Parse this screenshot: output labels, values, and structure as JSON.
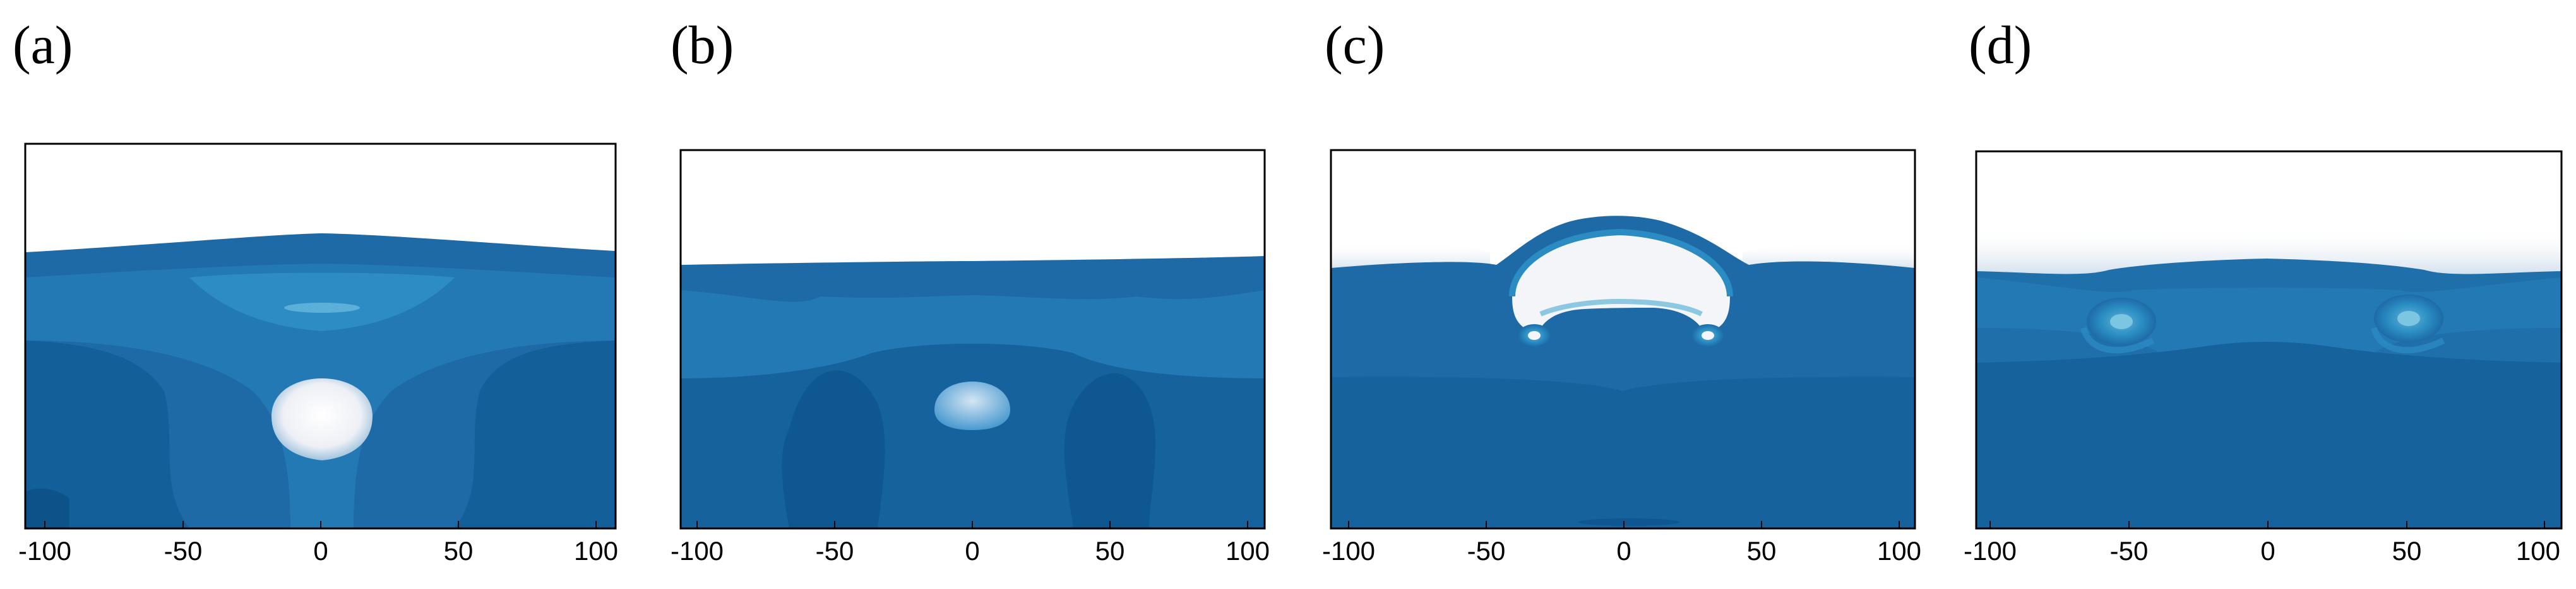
{
  "figure": {
    "panels": [
      {
        "label": "(a)",
        "x_ticks": [
          "-100",
          "-50",
          "0",
          "50",
          "100"
        ]
      },
      {
        "label": "(b)",
        "x_ticks": [
          "-100",
          "-50",
          "0",
          "50",
          "100"
        ]
      },
      {
        "label": "(c)",
        "x_ticks": [
          "-100",
          "-50",
          "0",
          "50",
          "100"
        ]
      },
      {
        "label": "(d)",
        "x_ticks": [
          "-100",
          "-50",
          "0",
          "50",
          "100"
        ]
      }
    ],
    "colors": {
      "air": "#ffffff",
      "water_surface": "#1d6aa6",
      "water_light": "#2a8cc2",
      "water_mid": "#1565a2",
      "water_deep": "#0e5791",
      "water_darkest": "#0b4a7e",
      "bubble": "#f2f2f6",
      "frame": "#000000"
    }
  }
}
